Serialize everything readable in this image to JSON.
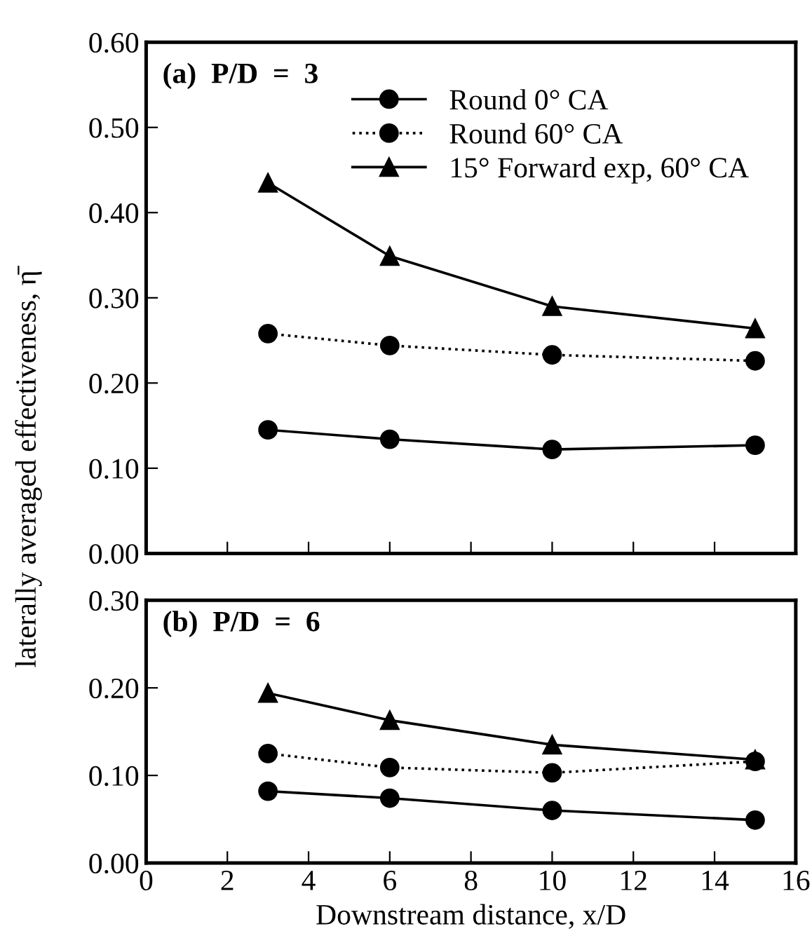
{
  "chart_data": [
    {
      "type": "line",
      "ylabel": "laterally averaged effectiveness, η̄",
      "annotations": [
        "(a)  P/D  =  3"
      ],
      "x": [
        3,
        6,
        10,
        15
      ],
      "xlim": [
        0,
        16
      ],
      "xticks": [
        0,
        2,
        4,
        6,
        8,
        10,
        12,
        14,
        16
      ],
      "ylim": [
        0,
        0.6
      ],
      "yticks": [
        {
          "value": 0,
          "label": "0.00"
        },
        {
          "value": 0.1,
          "label": "0.10"
        },
        {
          "value": 0.2,
          "label": "0.20"
        },
        {
          "value": 0.3,
          "label": "0.30"
        },
        {
          "value": 0.4,
          "label": "0.40"
        },
        {
          "value": 0.5,
          "label": "0.50"
        },
        {
          "value": 0.6,
          "label": "0.60"
        }
      ],
      "tick_labels": "y",
      "legend": "top right",
      "grid": false,
      "series": [
        {
          "name": "Round 0° CA",
          "color": "#000000",
          "marker": "circle",
          "line_style": "solid",
          "values": [
            0.145,
            0.134,
            0.122,
            0.127
          ]
        },
        {
          "name": "Round 60° CA",
          "color": "#000000",
          "marker": "circle",
          "line_style": "dotted",
          "values": [
            0.258,
            0.244,
            0.233,
            0.226
          ]
        },
        {
          "name": "15° Forward exp, 60° CA",
          "color": "#000000",
          "marker": "triangle",
          "line_style": "solid",
          "values": [
            0.435,
            0.349,
            0.29,
            0.264
          ]
        }
      ]
    },
    {
      "type": "line",
      "xlabel": "Downstream distance, x/D",
      "annotations": [
        "(b)  P/D  =  6"
      ],
      "x": [
        3,
        6,
        10,
        15
      ],
      "xlim": [
        0,
        16
      ],
      "xticks": [
        0,
        2,
        4,
        6,
        8,
        10,
        12,
        14,
        16
      ],
      "ylim": [
        0,
        0.3
      ],
      "yticks": [
        {
          "value": 0,
          "label": "0.00"
        },
        {
          "value": 0.1,
          "label": "0.10"
        },
        {
          "value": 0.2,
          "label": "0.20"
        },
        {
          "value": 0.3,
          "label": "0.30"
        }
      ],
      "grid": false,
      "series": [
        {
          "color": "#000000",
          "marker": "circle",
          "line_style": "solid",
          "values": [
            0.082,
            0.074,
            0.06,
            0.049
          ]
        },
        {
          "color": "#000000",
          "marker": "circle",
          "line_style": "dotted",
          "values": [
            0.125,
            0.109,
            0.103,
            0.116
          ]
        },
        {
          "color": "#000000",
          "marker": "triangle",
          "line_style": "solid",
          "values": [
            0.194,
            0.163,
            0.135,
            0.118
          ]
        }
      ]
    }
  ]
}
